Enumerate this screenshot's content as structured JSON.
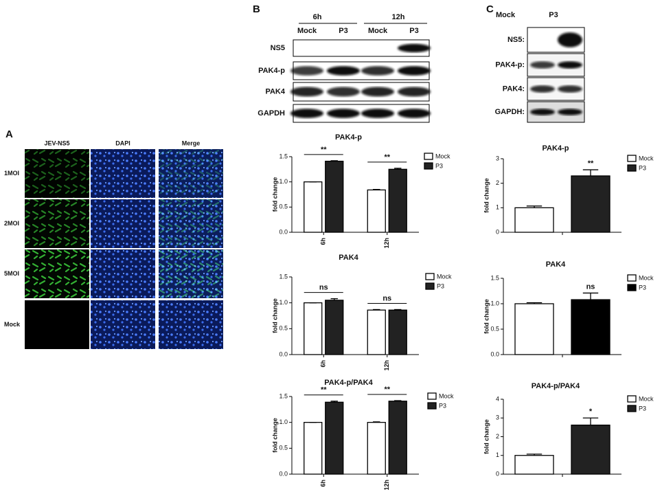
{
  "panel_labels": [
    "A",
    "B",
    "C"
  ],
  "microscopy": {
    "columns": [
      "JEV-NS5",
      "DAPI",
      "Merge"
    ],
    "rows": [
      "1MOI",
      "2MOI",
      "5MOI",
      "Mock"
    ]
  },
  "blot_b": {
    "time_labels": [
      "6h",
      "12h"
    ],
    "lanes": [
      "Mock",
      "P3",
      "Mock",
      "P3"
    ],
    "bands": [
      "NS5",
      "PAK4-p",
      "PAK4",
      "GAPDH"
    ]
  },
  "blot_c": {
    "lanes": [
      "Mock",
      "P3"
    ],
    "bands": [
      "NS5:",
      "PAK4-p:",
      "PAK4:",
      "GAPDH:"
    ]
  },
  "chart_data": [
    {
      "type": "bar",
      "title": "PAK4-p",
      "ylabel": "fold change",
      "categories": [
        "6h",
        "12h"
      ],
      "series": [
        {
          "name": "Mock",
          "color": "#ffffff",
          "values": [
            1.0,
            0.84
          ],
          "errors": [
            0,
            0.01
          ]
        },
        {
          "name": "P3",
          "color": "#222222",
          "values": [
            1.41,
            1.25
          ],
          "errors": [
            0.01,
            0.02
          ]
        }
      ],
      "ylim": [
        0,
        1.5
      ],
      "yticks": [
        {
          "value": 0,
          "label": "0.0"
        },
        {
          "value": 0.5,
          "label": "0.5"
        },
        {
          "value": 1,
          "label": "1.0"
        },
        {
          "value": 1.5,
          "label": "1.5"
        }
      ],
      "annotations": [
        "**",
        "**"
      ],
      "brackets": true,
      "legend": "top-right"
    },
    {
      "type": "bar",
      "title": "PAK4",
      "ylabel": "fold change",
      "categories": [
        "6h",
        "12h"
      ],
      "series": [
        {
          "name": "Mock",
          "color": "#ffffff",
          "values": [
            1.0,
            0.86
          ],
          "errors": [
            0,
            0.01
          ]
        },
        {
          "name": "P3",
          "color": "#222222",
          "values": [
            1.05,
            0.86
          ],
          "errors": [
            0.03,
            0.01
          ]
        }
      ],
      "ylim": [
        0,
        1.5
      ],
      "yticks": [
        {
          "value": 0,
          "label": "0.0"
        },
        {
          "value": 0.5,
          "label": "0.5"
        },
        {
          "value": 1,
          "label": "1.0"
        },
        {
          "value": 1.5,
          "label": "1.5"
        }
      ],
      "annotations": [
        "ns",
        "ns"
      ],
      "brackets": true,
      "legend": "top-right"
    },
    {
      "type": "bar",
      "title": "PAK4-p/PAK4",
      "ylabel": "fold change",
      "categories": [
        "6h",
        "12h"
      ],
      "series": [
        {
          "name": "Mock",
          "color": "#ffffff",
          "values": [
            1.0,
            1.0
          ],
          "errors": [
            0,
            0.01
          ]
        },
        {
          "name": "P3",
          "color": "#222222",
          "values": [
            1.39,
            1.41
          ],
          "errors": [
            0.02,
            0.01
          ]
        }
      ],
      "ylim": [
        0,
        1.5
      ],
      "yticks": [
        {
          "value": 0,
          "label": "0.0"
        },
        {
          "value": 0.5,
          "label": "0.5"
        },
        {
          "value": 1,
          "label": "1.0"
        },
        {
          "value": 1.5,
          "label": "1.5"
        }
      ],
      "annotations": [
        "**",
        "**"
      ],
      "brackets": true,
      "legend": "top-right"
    },
    {
      "type": "bar",
      "title": "PAK4-p",
      "ylabel": "fold change",
      "categories": [
        null
      ],
      "series": [
        {
          "name": "Mock",
          "color": "#ffffff",
          "values": [
            1.0
          ],
          "errors": [
            0.07
          ]
        },
        {
          "name": "P3",
          "color": "#222222",
          "values": [
            2.3
          ],
          "errors": [
            0.25
          ]
        }
      ],
      "ylim": [
        0,
        3
      ],
      "yticks": [
        0,
        1,
        2,
        3
      ],
      "annotations": [
        "**"
      ],
      "brackets": false,
      "legend": "top-right"
    },
    {
      "type": "bar",
      "title": "PAK4",
      "ylabel": "fold change",
      "categories": [
        null
      ],
      "series": [
        {
          "name": "Mock",
          "color": "#ffffff",
          "values": [
            1.0
          ],
          "errors": [
            0.02
          ]
        },
        {
          "name": "P3",
          "color": "#000000",
          "values": [
            1.08
          ],
          "errors": [
            0.13
          ]
        }
      ],
      "ylim": [
        0,
        1.5
      ],
      "yticks": [
        {
          "value": 0,
          "label": "0.0"
        },
        {
          "value": 0.5,
          "label": "0.5"
        },
        {
          "value": 1,
          "label": "1.0"
        },
        {
          "value": 1.5,
          "label": "1.5"
        }
      ],
      "annotations": [
        "ns"
      ],
      "brackets": false,
      "legend": "top-right"
    },
    {
      "type": "bar",
      "title": "PAK4-p/PAK4",
      "ylabel": "fold change",
      "categories": [
        null
      ],
      "series": [
        {
          "name": "Mock",
          "color": "#ffffff",
          "values": [
            1.0
          ],
          "errors": [
            0.07
          ]
        },
        {
          "name": "P3",
          "color": "#222222",
          "values": [
            2.62
          ],
          "errors": [
            0.38
          ]
        }
      ],
      "ylim": [
        0,
        4
      ],
      "yticks": [
        0,
        1,
        2,
        3,
        4
      ],
      "annotations": [
        "*"
      ],
      "brackets": false,
      "legend": "top-right"
    }
  ]
}
